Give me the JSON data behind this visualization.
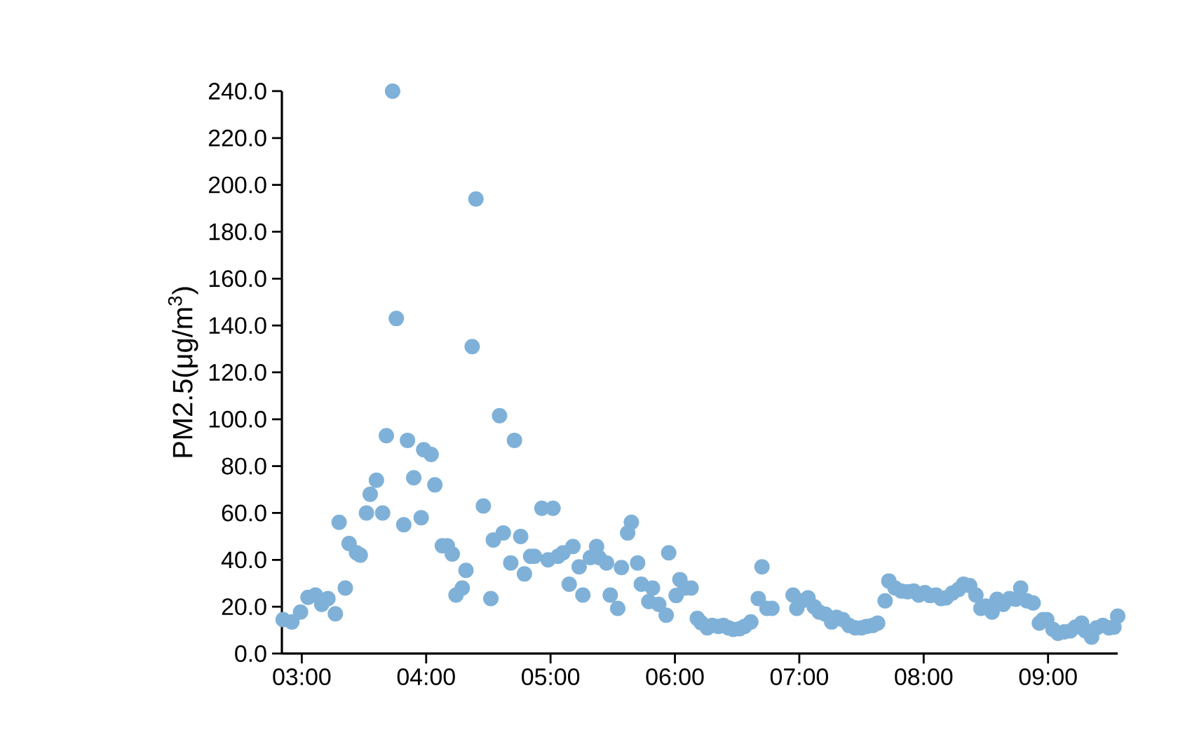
{
  "chart_data": {
    "type": "scatter",
    "ylabel": "PM2.5(μg/m$^{3}$)",
    "color": "#7fb1d8",
    "grid": false,
    "x": [
      2.85,
      2.92,
      2.99,
      3.05,
      3.11,
      3.16,
      3.21,
      3.27,
      3.3,
      3.35,
      3.38,
      3.44,
      3.47,
      3.52,
      3.55,
      3.6,
      3.65,
      3.68,
      3.73,
      3.76,
      3.82,
      3.85,
      3.9,
      3.96,
      3.98,
      4.04,
      4.07,
      4.13,
      4.17,
      4.21,
      4.24,
      4.29,
      4.32,
      4.37,
      4.4,
      4.46,
      4.52,
      4.54,
      4.59,
      4.62,
      4.68,
      4.71,
      4.76,
      4.79,
      4.84,
      4.87,
      4.93,
      4.98,
      5.02,
      5.06,
      5.1,
      5.15,
      5.18,
      5.23,
      5.26,
      5.32,
      5.37,
      5.39,
      5.45,
      5.48,
      5.54,
      5.57,
      5.62,
      5.65,
      5.7,
      5.73,
      5.79,
      5.82,
      5.87,
      5.93,
      5.95,
      6.01,
      6.04,
      6.08,
      6.13,
      6.18,
      6.21,
      6.26,
      6.3,
      6.35,
      6.39,
      6.43,
      6.47,
      6.52,
      6.56,
      6.61,
      6.67,
      6.7,
      6.74,
      6.78,
      6.95,
      6.98,
      7.02,
      7.07,
      7.12,
      7.16,
      7.21,
      7.26,
      7.3,
      7.35,
      7.4,
      7.45,
      7.5,
      7.54,
      7.59,
      7.63,
      7.69,
      7.72,
      7.77,
      7.82,
      7.87,
      7.92,
      7.96,
      8.01,
      8.05,
      8.1,
      8.14,
      8.18,
      8.23,
      8.28,
      8.32,
      8.37,
      8.42,
      8.46,
      8.5,
      8.55,
      8.59,
      8.64,
      8.69,
      8.74,
      8.78,
      8.83,
      8.88,
      8.93,
      8.96,
      8.99,
      9.04,
      9.08,
      9.13,
      9.18,
      9.22,
      9.27,
      9.3,
      9.35,
      9.39,
      9.44,
      9.49,
      9.53,
      9.56
    ],
    "values": [
      14.5,
      13.5,
      17.7,
      24,
      25,
      21,
      23.5,
      17,
      56,
      28,
      47,
      43,
      42,
      60,
      68,
      74,
      60,
      93,
      240,
      143,
      55,
      91,
      75,
      58,
      87,
      85,
      72,
      46,
      46,
      42.5,
      25,
      28,
      35.5,
      131,
      194,
      63,
      23.5,
      48.5,
      101.5,
      51.5,
      38.7,
      91,
      50,
      34,
      41.5,
      41.5,
      62,
      40,
      62,
      41.5,
      43,
      29.6,
      45.7,
      37,
      25,
      41,
      45.7,
      41,
      38.7,
      25,
      19.3,
      36.7,
      51.5,
      56,
      38.7,
      29.6,
      22.2,
      28,
      21,
      16.4,
      43,
      24.8,
      31.6,
      28,
      28,
      15,
      13.2,
      11,
      12,
      11.6,
      12,
      11,
      10.3,
      10.6,
      11.6,
      13.5,
      23.5,
      37,
      19.3,
      19.3,
      25,
      19.3,
      22.5,
      23.8,
      20,
      17.7,
      16.8,
      13.5,
      15.5,
      14.5,
      12,
      11,
      11,
      11.6,
      12,
      13,
      22.5,
      31,
      28,
      26.7,
      26.4,
      26.7,
      25,
      26,
      24.8,
      25,
      23.5,
      23.8,
      25.8,
      27.4,
      29.6,
      29,
      25,
      19.3,
      20.3,
      17.7,
      23.2,
      21,
      23.5,
      23.2,
      28,
      22.5,
      21.6,
      13,
      14.5,
      14.5,
      10.3,
      8.7,
      9.3,
      9.7,
      11.3,
      13,
      9.7,
      7,
      11,
      12,
      11,
      11.3,
      16
    ],
    "xlim": [
      2.84,
      9.56
    ],
    "ylim": [
      0,
      240
    ],
    "xticks": [
      {
        "value": 3,
        "label": "03:00"
      },
      {
        "value": 4,
        "label": "04:00"
      },
      {
        "value": 5,
        "label": "05:00"
      },
      {
        "value": 6,
        "label": "06:00"
      },
      {
        "value": 7,
        "label": "07:00"
      },
      {
        "value": 8,
        "label": "08:00"
      },
      {
        "value": 9,
        "label": "09:00"
      }
    ],
    "yticks": [
      {
        "value": 0,
        "label": "0.0"
      },
      {
        "value": 20,
        "label": "20.0"
      },
      {
        "value": 40,
        "label": "40.0"
      },
      {
        "value": 60,
        "label": "60.0"
      },
      {
        "value": 80,
        "label": "80.0"
      },
      {
        "value": 100,
        "label": "100.0"
      },
      {
        "value": 120,
        "label": "120.0"
      },
      {
        "value": 140,
        "label": "140.0"
      },
      {
        "value": 160,
        "label": "160.0"
      },
      {
        "value": 180,
        "label": "180.0"
      },
      {
        "value": 200,
        "label": "200.0"
      },
      {
        "value": 220,
        "label": "220.0"
      },
      {
        "value": 240,
        "label": "240.0"
      }
    ]
  }
}
